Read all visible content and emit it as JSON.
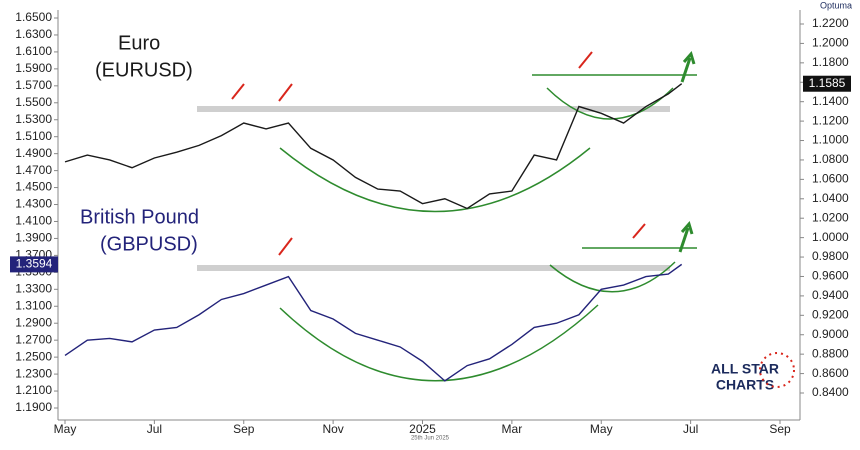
{
  "chart_data": {
    "type": "line",
    "annotations": {
      "euro": "Euro",
      "euro_code": "(EURUSD)",
      "gbp": "British Pound",
      "gbp_code": "(GBPUSD)",
      "brand": "ALL STAR",
      "brand2": "CHARTS",
      "source": "Optuma",
      "date": "25th Jun 2025"
    },
    "x": [
      0,
      0.5,
      1,
      1.5,
      2,
      2.5,
      3,
      3.5,
      4,
      4.5,
      5,
      5.5,
      6,
      6.5,
      7,
      7.5,
      8,
      8.5,
      9,
      9.5,
      10,
      10.5,
      11,
      11.5,
      12,
      12.5,
      13,
      13.5,
      13.8
    ],
    "xlim": [
      0,
      16
    ],
    "xticks": [
      {
        "value": 0,
        "label": "May"
      },
      {
        "value": 2,
        "label": "Jul"
      },
      {
        "value": 4,
        "label": "Sep"
      },
      {
        "value": 6,
        "label": "Nov"
      },
      {
        "value": 8,
        "label": "2025"
      },
      {
        "value": 10,
        "label": "Mar"
      },
      {
        "value": 12,
        "label": "May"
      },
      {
        "value": 14,
        "label": "Jul"
      },
      {
        "value": 16,
        "label": "Sep"
      }
    ],
    "series": [
      {
        "name": "GBPUSD",
        "color": "#23237a",
        "axis": "y",
        "values": [
          1.252,
          1.27,
          1.272,
          1.268,
          1.282,
          1.285,
          1.3,
          1.318,
          1.325,
          1.335,
          1.345,
          1.305,
          1.295,
          1.278,
          1.27,
          1.262,
          1.245,
          1.222,
          1.24,
          1.248,
          1.265,
          1.285,
          1.29,
          1.3,
          1.33,
          1.335,
          1.345,
          1.348,
          1.3594
        ]
      },
      {
        "name": "EURUSD",
        "color": "#1a1a1a",
        "axis": "y2",
        "values": [
          1.078,
          1.085,
          1.08,
          1.072,
          1.082,
          1.088,
          1.095,
          1.105,
          1.118,
          1.112,
          1.118,
          1.092,
          1.08,
          1.062,
          1.05,
          1.048,
          1.035,
          1.04,
          1.03,
          1.045,
          1.048,
          1.085,
          1.08,
          1.135,
          1.128,
          1.118,
          1.135,
          1.148,
          1.1585
        ]
      }
    ],
    "ylim": [
      1.19,
      1.65
    ],
    "yticks": [
      {
        "value": 1.19,
        "label": "1.1900"
      },
      {
        "value": 1.21,
        "label": "1.2100"
      },
      {
        "value": 1.23,
        "label": "1.2300"
      },
      {
        "value": 1.25,
        "label": "1.2500"
      },
      {
        "value": 1.27,
        "label": "1.2700"
      },
      {
        "value": 1.29,
        "label": "1.2900"
      },
      {
        "value": 1.31,
        "label": "1.3100"
      },
      {
        "value": 1.33,
        "label": "1.3300"
      },
      {
        "value": 1.35,
        "label": "1.3500"
      },
      {
        "value": 1.37,
        "label": "1.3700"
      },
      {
        "value": 1.39,
        "label": "1.3900"
      },
      {
        "value": 1.41,
        "label": "1.4100"
      },
      {
        "value": 1.43,
        "label": "1.4300"
      },
      {
        "value": 1.45,
        "label": "1.4500"
      },
      {
        "value": 1.47,
        "label": "1.4700"
      },
      {
        "value": 1.49,
        "label": "1.4900"
      },
      {
        "value": 1.51,
        "label": "1.5100"
      },
      {
        "value": 1.53,
        "label": "1.5300"
      },
      {
        "value": 1.55,
        "label": "1.5500"
      },
      {
        "value": 1.57,
        "label": "1.5700"
      },
      {
        "value": 1.59,
        "label": "1.5900"
      },
      {
        "value": 1.61,
        "label": "1.6100"
      },
      {
        "value": 1.63,
        "label": "1.6300"
      },
      {
        "value": 1.65,
        "label": "1.6500"
      }
    ],
    "y2lim": [
      0.84,
      1.22
    ],
    "y2ticks": [
      {
        "value": 0.84,
        "label": "0.8400"
      },
      {
        "value": 0.86,
        "label": "0.8600"
      },
      {
        "value": 0.88,
        "label": "0.8800"
      },
      {
        "value": 0.9,
        "label": "0.9000"
      },
      {
        "value": 0.92,
        "label": "0.9200"
      },
      {
        "value": 0.94,
        "label": "0.9400"
      },
      {
        "value": 0.96,
        "label": "0.9600"
      },
      {
        "value": 0.98,
        "label": "0.9800"
      },
      {
        "value": 1.0,
        "label": "1.0000"
      },
      {
        "value": 1.02,
        "label": "1.0200"
      },
      {
        "value": 1.04,
        "label": "1.0400"
      },
      {
        "value": 1.06,
        "label": "1.0600"
      },
      {
        "value": 1.08,
        "label": "1.0800"
      },
      {
        "value": 1.1,
        "label": "1.1000"
      },
      {
        "value": 1.12,
        "label": "1.1200"
      },
      {
        "value": 1.14,
        "label": "1.1400"
      },
      {
        "value": 1.16,
        "label": "1.1600"
      },
      {
        "value": 1.18,
        "label": "1.1800"
      },
      {
        "value": 1.2,
        "label": "1.2000"
      },
      {
        "value": 1.22,
        "label": "1.2200"
      }
    ]
  }
}
